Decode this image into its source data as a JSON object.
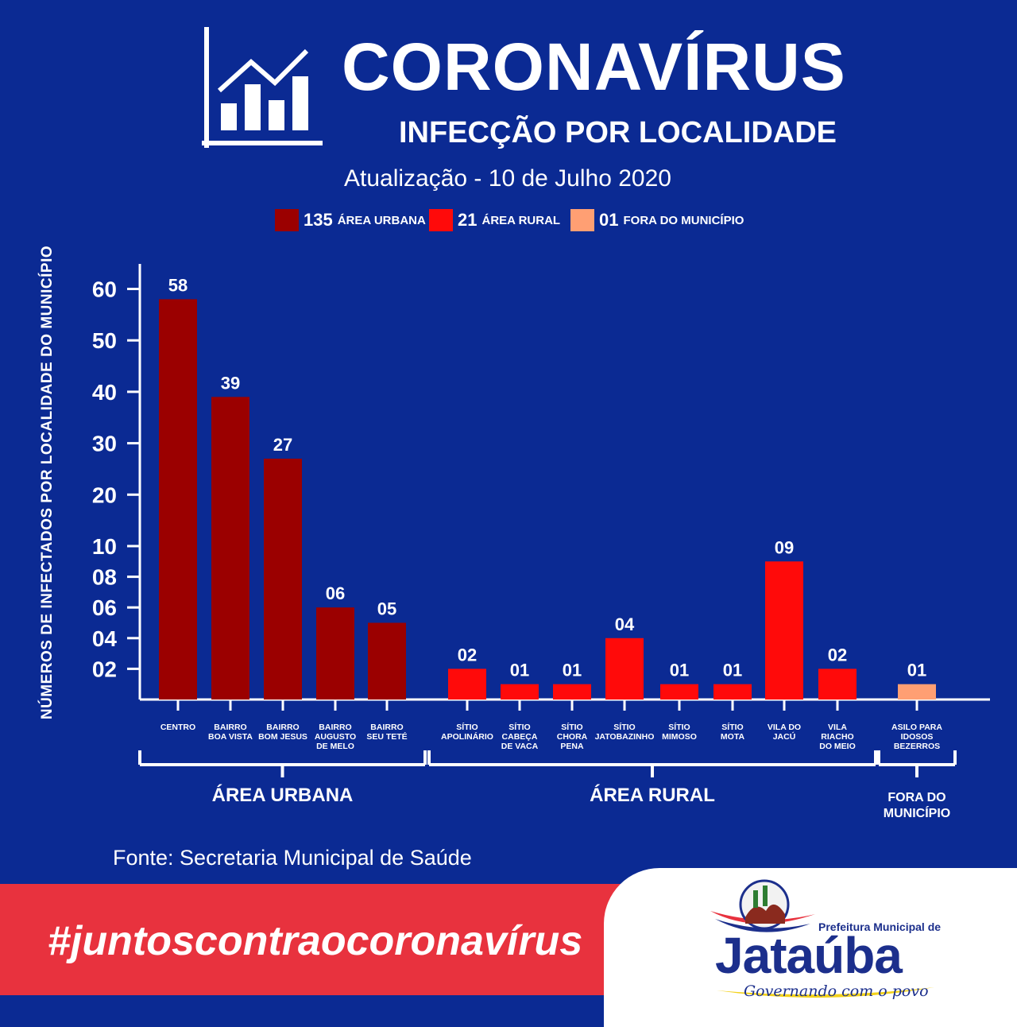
{
  "header": {
    "title": "CORONAVÍRUS",
    "subtitle": "INFECÇÃO POR LOCALIDADE",
    "update": "Atualização - 10 de Julho 2020"
  },
  "legend": [
    {
      "value": "135",
      "label": "ÁREA URBANA",
      "color": "#9b0000"
    },
    {
      "value": "21",
      "label": "ÁREA RURAL",
      "color": "#ff0a0a"
    },
    {
      "value": "01",
      "label": "FORA DO MUNICÍPIO",
      "color": "#ff9f73"
    }
  ],
  "source": "Fonte: Secretaria Municipal de Saúde",
  "banner": {
    "hashtag": "#juntoscontraocoronavírus"
  },
  "logo": {
    "line1": "Prefeitura Municipal de",
    "name": "Jataúba",
    "slogan": "Governando com o povo",
    "colors": {
      "navy": "#1c2f8c",
      "red": "#e8323e",
      "yellow": "#f3d21b"
    }
  },
  "chart_data": {
    "type": "bar",
    "ylabel": "NÚMEROS DE INFECTADOS POR LOCALIDADE DO MUNICÍPIO",
    "y_ticks": [
      "60",
      "50",
      "40",
      "30",
      "20",
      "10",
      "08",
      "06",
      "04",
      "02"
    ],
    "categories": [
      {
        "label": [
          "CENTRO"
        ],
        "value": 58,
        "value_label": "58",
        "group": "urbana"
      },
      {
        "label": [
          "BAIRRO",
          "BOA VISTA"
        ],
        "value": 39,
        "value_label": "39",
        "group": "urbana"
      },
      {
        "label": [
          "BAIRRO",
          "BOM JESUS"
        ],
        "value": 27,
        "value_label": "27",
        "group": "urbana"
      },
      {
        "label": [
          "BAIRRO",
          "AUGUSTO",
          "DE MELO"
        ],
        "value": 6,
        "value_label": "06",
        "group": "urbana"
      },
      {
        "label": [
          "BAIRRO",
          "SEU TETÉ"
        ],
        "value": 5,
        "value_label": "05",
        "group": "urbana"
      },
      {
        "label": [
          "SÍTIO",
          "APOLINÁRIO"
        ],
        "value": 2,
        "value_label": "02",
        "group": "rural"
      },
      {
        "label": [
          "SÍTIO",
          "CABEÇA",
          "DE VACA"
        ],
        "value": 1,
        "value_label": "01",
        "group": "rural"
      },
      {
        "label": [
          "SÍTIO",
          "CHORA",
          "PENA"
        ],
        "value": 1,
        "value_label": "01",
        "group": "rural"
      },
      {
        "label": [
          "SÍTIO",
          "JATOBAZINHO"
        ],
        "value": 4,
        "value_label": "04",
        "group": "rural"
      },
      {
        "label": [
          "SÍTIO",
          "MIMOSO"
        ],
        "value": 1,
        "value_label": "01",
        "group": "rural"
      },
      {
        "label": [
          "SÍTIO",
          "MOTA"
        ],
        "value": 1,
        "value_label": "01",
        "group": "rural"
      },
      {
        "label": [
          "VILA DO",
          "JACÚ"
        ],
        "value": 9,
        "value_label": "09",
        "group": "rural"
      },
      {
        "label": [
          "VILA",
          "RIACHO",
          "DO MEIO"
        ],
        "value": 2,
        "value_label": "02",
        "group": "rural"
      },
      {
        "label": [
          "ASILO PARA",
          "IDOSOS",
          "BEZERROS"
        ],
        "value": 1,
        "value_label": "01",
        "group": "fora"
      }
    ],
    "groups": [
      {
        "id": "urbana",
        "label": [
          "ÁREA URBANA"
        ]
      },
      {
        "id": "rural",
        "label": [
          "ÁREA RURAL"
        ]
      },
      {
        "id": "fora",
        "label": [
          "FORA DO",
          "MUNICÍPIO"
        ]
      }
    ],
    "series_colors": {
      "urbana": "#9b0000",
      "rural": "#ff0a0a",
      "fora": "#ff9f73"
    },
    "grid": false
  }
}
